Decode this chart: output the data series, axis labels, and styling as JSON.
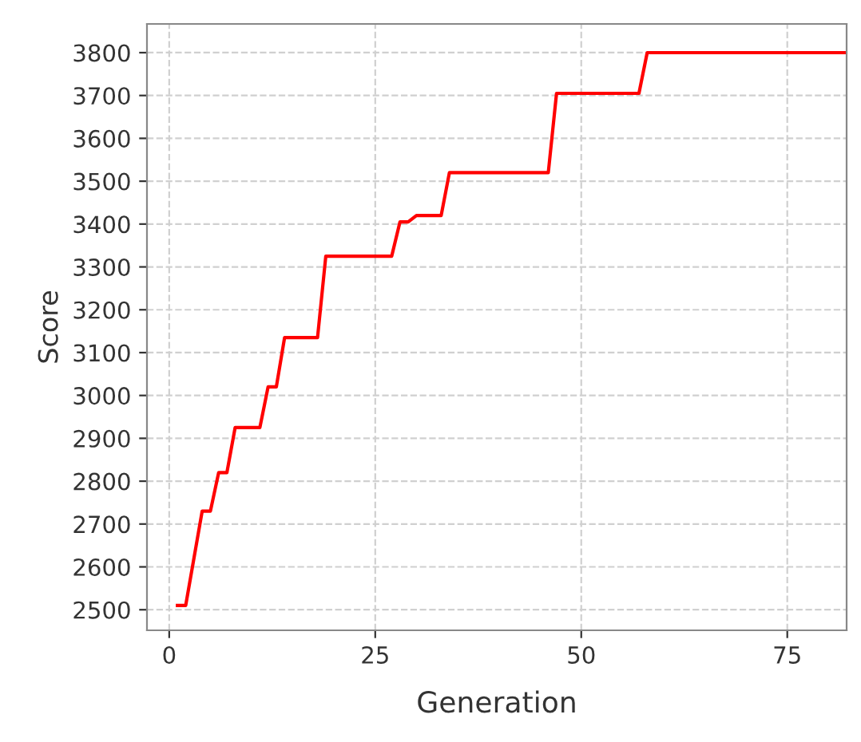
{
  "chart_data": {
    "type": "line",
    "xlabel": "Generation",
    "ylabel": "Score",
    "series": [
      {
        "color": "#ff0000",
        "x": [
          1,
          2,
          4,
          5,
          6,
          7,
          8,
          11,
          12,
          13,
          14,
          18,
          19,
          27,
          28,
          29,
          30,
          33,
          34,
          46,
          47,
          57,
          58,
          82
        ],
        "values": [
          2510,
          2510,
          2730,
          2730,
          2820,
          2820,
          2925,
          2925,
          3020,
          3020,
          3135,
          3135,
          3325,
          3325,
          3405,
          3405,
          3420,
          3420,
          3520,
          3520,
          3705,
          3705,
          3800,
          3800
        ]
      }
    ],
    "xlim": [
      -2.7,
      82.2
    ],
    "ylim": [
      2452,
      3867
    ],
    "xticks": [
      0,
      25,
      50,
      75
    ],
    "yticks": [
      2500,
      2600,
      2700,
      2800,
      2900,
      3000,
      3100,
      3200,
      3300,
      3400,
      3500,
      3600,
      3700,
      3800
    ],
    "grid": true,
    "line_style": "solid",
    "marker": "none"
  }
}
